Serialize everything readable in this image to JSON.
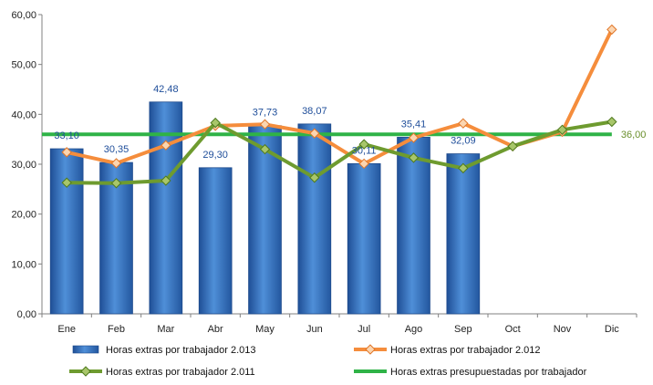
{
  "chart_data": {
    "type": "bar",
    "categories": [
      "Ene",
      "Feb",
      "Mar",
      "Abr",
      "May",
      "Jun",
      "Jul",
      "Ago",
      "Sep",
      "Oct",
      "Nov",
      "Dic"
    ],
    "y_ticks": [
      "0,00",
      "10,00",
      "20,00",
      "30,00",
      "40,00",
      "50,00",
      "60,00"
    ],
    "ylim": [
      0,
      60
    ],
    "grid": false,
    "legend_position": "bottom",
    "series": [
      {
        "name": "Horas extras por trabajador 2.013",
        "kind": "bar",
        "color": "#3a78c3",
        "values": [
          33.1,
          30.35,
          42.48,
          29.3,
          37.73,
          38.07,
          30.11,
          35.41,
          32.09,
          null,
          null,
          null
        ],
        "labels": [
          "33,10",
          "30,35",
          "42,48",
          "29,30",
          "37,73",
          "38,07",
          "30,11",
          "35,41",
          "32,09",
          "",
          "",
          ""
        ]
      },
      {
        "name": "Horas extras por trabajador 2.012",
        "kind": "line",
        "color": "#f58d3c",
        "values": [
          32.4,
          30.2,
          33.8,
          37.7,
          38.0,
          36.2,
          30.1,
          35.3,
          38.2,
          33.6,
          36.5,
          57.0
        ]
      },
      {
        "name": "Horas extras por trabajador 2.011",
        "kind": "line",
        "color": "#6e9b2f",
        "values": [
          26.3,
          26.2,
          26.7,
          38.3,
          33.0,
          27.3,
          34.0,
          31.3,
          29.2,
          33.6,
          36.9,
          38.5
        ]
      },
      {
        "name": "Horas extras presupuestadas por trabajador",
        "kind": "line",
        "color": "#2fb347",
        "values": [
          36,
          36,
          36,
          36,
          36,
          36,
          36,
          36,
          36,
          36,
          36,
          36
        ],
        "end_label": "36,00"
      }
    ]
  }
}
